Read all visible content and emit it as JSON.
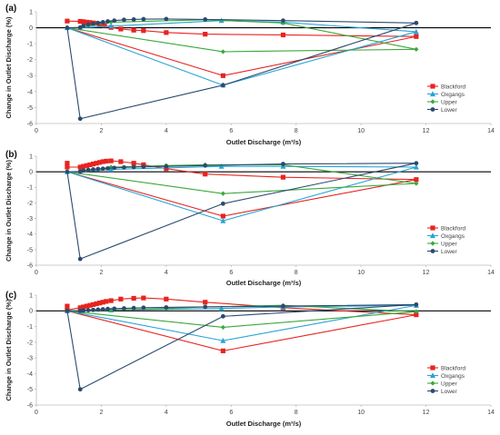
{
  "ylabel_shared": "Change in Outlet Discharge (%)",
  "chart_data": [
    {
      "type": "line",
      "panel_label": "(a)",
      "xlabel": "Outlet Discharge (m³/s)",
      "ylabel": "",
      "xlim": [
        0,
        14
      ],
      "ylim": [
        -6,
        1
      ],
      "xticks": [
        0,
        2,
        4,
        6,
        8,
        10,
        12,
        14
      ],
      "yticks": [
        1,
        0,
        -1,
        -2,
        -3,
        -4,
        -5,
        -6
      ],
      "legend": "bottom-right",
      "grid": false,
      "series": [
        {
          "name": "Blackford",
          "color": "#e8231f",
          "marker": "square",
          "points": [
            [
              0.95,
              0.42
            ],
            [
              1.35,
              0.4
            ],
            [
              1.45,
              0.38
            ],
            [
              1.55,
              0.35
            ],
            [
              1.65,
              0.33
            ],
            [
              1.75,
              0.3
            ],
            [
              1.85,
              0.27
            ],
            [
              1.95,
              0.24
            ],
            [
              2.1,
              0.15
            ],
            [
              2.3,
              0.02
            ],
            [
              2.6,
              -0.08
            ],
            [
              3.0,
              -0.15
            ],
            [
              3.3,
              -0.18
            ],
            [
              4.0,
              -0.3
            ],
            [
              5.2,
              -0.4
            ],
            [
              7.6,
              -0.45
            ],
            [
              11.7,
              -0.55
            ],
            [
              5.75,
              -3.0
            ],
            [
              0.95,
              0.0
            ]
          ]
        },
        {
          "name": "Oxgangs",
          "color": "#27a3d6",
          "marker": "triangle",
          "points": [
            [
              0.95,
              0.0
            ],
            [
              1.35,
              0.0
            ],
            [
              2.3,
              0.1
            ],
            [
              5.7,
              0.45
            ],
            [
              7.6,
              0.35
            ],
            [
              11.7,
              -0.25
            ],
            [
              5.75,
              -3.6
            ],
            [
              0.95,
              0.0
            ]
          ]
        },
        {
          "name": "Upper",
          "color": "#3ba83b",
          "marker": "diamond",
          "points": [
            [
              0.95,
              0.0
            ],
            [
              1.35,
              0.0
            ],
            [
              2.3,
              0.35
            ],
            [
              5.2,
              0.5
            ],
            [
              7.6,
              0.3
            ],
            [
              11.7,
              -1.35
            ],
            [
              5.75,
              -1.5
            ],
            [
              0.95,
              0.0
            ]
          ]
        },
        {
          "name": "Lower",
          "color": "#2c4a6e",
          "marker": "circle",
          "points": [
            [
              0.95,
              0.0
            ],
            [
              1.35,
              0.02
            ],
            [
              1.45,
              0.12
            ],
            [
              1.6,
              0.2
            ],
            [
              1.75,
              0.25
            ],
            [
              1.9,
              0.3
            ],
            [
              2.05,
              0.35
            ],
            [
              2.2,
              0.4
            ],
            [
              2.4,
              0.45
            ],
            [
              2.7,
              0.5
            ],
            [
              3.0,
              0.52
            ],
            [
              3.3,
              0.54
            ],
            [
              4.0,
              0.55
            ],
            [
              5.2,
              0.52
            ],
            [
              7.6,
              0.45
            ],
            [
              11.7,
              0.3
            ],
            [
              5.75,
              -3.6
            ],
            [
              1.35,
              -5.7
            ],
            [
              0.95,
              0.0
            ]
          ]
        }
      ]
    },
    {
      "type": "line",
      "panel_label": "(b)",
      "xlabel": "Outlet Discharge (m³/s)",
      "ylabel": "",
      "xlim": [
        0,
        14
      ],
      "ylim": [
        -6,
        1
      ],
      "xticks": [
        0,
        2,
        4,
        6,
        8,
        10,
        12,
        14
      ],
      "yticks": [
        1,
        0,
        -1,
        -2,
        -3,
        -4,
        -5,
        -6
      ],
      "legend": "bottom-right",
      "grid": false,
      "series": [
        {
          "name": "Blackford",
          "color": "#e8231f",
          "marker": "square",
          "points": [
            [
              0.95,
              0.55
            ],
            [
              0.95,
              0.3
            ],
            [
              1.35,
              0.3
            ],
            [
              1.45,
              0.35
            ],
            [
              1.55,
              0.4
            ],
            [
              1.65,
              0.45
            ],
            [
              1.75,
              0.5
            ],
            [
              1.85,
              0.55
            ],
            [
              1.95,
              0.6
            ],
            [
              2.05,
              0.65
            ],
            [
              2.15,
              0.68
            ],
            [
              2.3,
              0.7
            ],
            [
              2.6,
              0.65
            ],
            [
              3.0,
              0.55
            ],
            [
              3.3,
              0.45
            ],
            [
              4.0,
              0.2
            ],
            [
              5.2,
              -0.15
            ],
            [
              7.6,
              -0.35
            ],
            [
              11.7,
              -0.5
            ],
            [
              5.75,
              -2.85
            ],
            [
              0.95,
              0.0
            ]
          ]
        },
        {
          "name": "Oxgangs",
          "color": "#27a3d6",
          "marker": "triangle",
          "points": [
            [
              0.95,
              0.0
            ],
            [
              1.35,
              0.0
            ],
            [
              2.3,
              0.15
            ],
            [
              5.7,
              0.35
            ],
            [
              7.6,
              0.35
            ],
            [
              11.7,
              0.3
            ],
            [
              5.75,
              -3.15
            ],
            [
              0.95,
              0.0
            ]
          ]
        },
        {
          "name": "Upper",
          "color": "#3ba83b",
          "marker": "diamond",
          "points": [
            [
              0.95,
              0.0
            ],
            [
              1.35,
              0.0
            ],
            [
              2.3,
              0.3
            ],
            [
              4.0,
              0.4
            ],
            [
              5.2,
              0.45
            ],
            [
              7.6,
              0.45
            ],
            [
              11.7,
              -0.75
            ],
            [
              5.75,
              -1.4
            ],
            [
              0.95,
              0.0
            ]
          ]
        },
        {
          "name": "Lower",
          "color": "#2c4a6e",
          "marker": "circle",
          "points": [
            [
              0.95,
              0.0
            ],
            [
              1.35,
              0.02
            ],
            [
              1.45,
              0.08
            ],
            [
              1.6,
              0.12
            ],
            [
              1.75,
              0.15
            ],
            [
              1.9,
              0.18
            ],
            [
              2.05,
              0.2
            ],
            [
              2.2,
              0.22
            ],
            [
              2.4,
              0.25
            ],
            [
              2.7,
              0.28
            ],
            [
              3.0,
              0.3
            ],
            [
              3.3,
              0.32
            ],
            [
              4.0,
              0.35
            ],
            [
              5.2,
              0.4
            ],
            [
              7.6,
              0.5
            ],
            [
              11.7,
              0.55
            ],
            [
              5.75,
              -2.05
            ],
            [
              1.35,
              -5.6
            ],
            [
              0.95,
              0.0
            ]
          ]
        }
      ]
    },
    {
      "type": "line",
      "panel_label": "(c)",
      "xlabel": "Outlet Discharge (m³/s)",
      "ylabel": "",
      "xlim": [
        0,
        14
      ],
      "ylim": [
        -6,
        1
      ],
      "xticks": [
        0,
        2,
        4,
        6,
        8,
        10,
        12,
        14
      ],
      "yticks": [
        1,
        0,
        -1,
        -2,
        -3,
        -4,
        -5,
        -6
      ],
      "legend": "bottom-right",
      "grid": false,
      "series": [
        {
          "name": "Blackford",
          "color": "#e8231f",
          "marker": "square",
          "points": [
            [
              0.95,
              0.3
            ],
            [
              0.95,
              0.05
            ],
            [
              1.35,
              0.2
            ],
            [
              1.45,
              0.25
            ],
            [
              1.55,
              0.3
            ],
            [
              1.65,
              0.35
            ],
            [
              1.75,
              0.4
            ],
            [
              1.85,
              0.45
            ],
            [
              1.95,
              0.5
            ],
            [
              2.05,
              0.55
            ],
            [
              2.15,
              0.6
            ],
            [
              2.3,
              0.65
            ],
            [
              2.6,
              0.75
            ],
            [
              3.0,
              0.8
            ],
            [
              3.3,
              0.82
            ],
            [
              4.0,
              0.75
            ],
            [
              5.2,
              0.55
            ],
            [
              7.6,
              0.2
            ],
            [
              11.7,
              -0.25
            ],
            [
              5.75,
              -2.55
            ],
            [
              0.95,
              0.0
            ]
          ]
        },
        {
          "name": "Oxgangs",
          "color": "#27a3d6",
          "marker": "triangle",
          "points": [
            [
              0.95,
              0.0
            ],
            [
              1.35,
              0.0
            ],
            [
              2.3,
              0.05
            ],
            [
              5.7,
              0.15
            ],
            [
              7.6,
              0.25
            ],
            [
              11.7,
              0.35
            ],
            [
              5.75,
              -1.9
            ],
            [
              0.95,
              0.0
            ]
          ]
        },
        {
          "name": "Upper",
          "color": "#3ba83b",
          "marker": "diamond",
          "points": [
            [
              0.95,
              0.0
            ],
            [
              1.35,
              0.0
            ],
            [
              2.3,
              0.05
            ],
            [
              4.0,
              0.15
            ],
            [
              5.2,
              0.25
            ],
            [
              7.6,
              0.35
            ],
            [
              11.7,
              -0.05
            ],
            [
              5.75,
              -1.05
            ],
            [
              0.95,
              0.0
            ]
          ]
        },
        {
          "name": "Lower",
          "color": "#2c4a6e",
          "marker": "circle",
          "points": [
            [
              0.95,
              0.0
            ],
            [
              1.35,
              0.0
            ],
            [
              1.45,
              0.02
            ],
            [
              1.6,
              0.04
            ],
            [
              1.75,
              0.06
            ],
            [
              1.9,
              0.08
            ],
            [
              2.05,
              0.1
            ],
            [
              2.2,
              0.12
            ],
            [
              2.4,
              0.14
            ],
            [
              2.7,
              0.16
            ],
            [
              3.0,
              0.18
            ],
            [
              3.3,
              0.2
            ],
            [
              4.0,
              0.22
            ],
            [
              5.2,
              0.25
            ],
            [
              7.6,
              0.3
            ],
            [
              11.7,
              0.4
            ],
            [
              5.75,
              -0.35
            ],
            [
              1.35,
              -5.0
            ],
            [
              0.95,
              0.0
            ]
          ]
        }
      ]
    }
  ]
}
